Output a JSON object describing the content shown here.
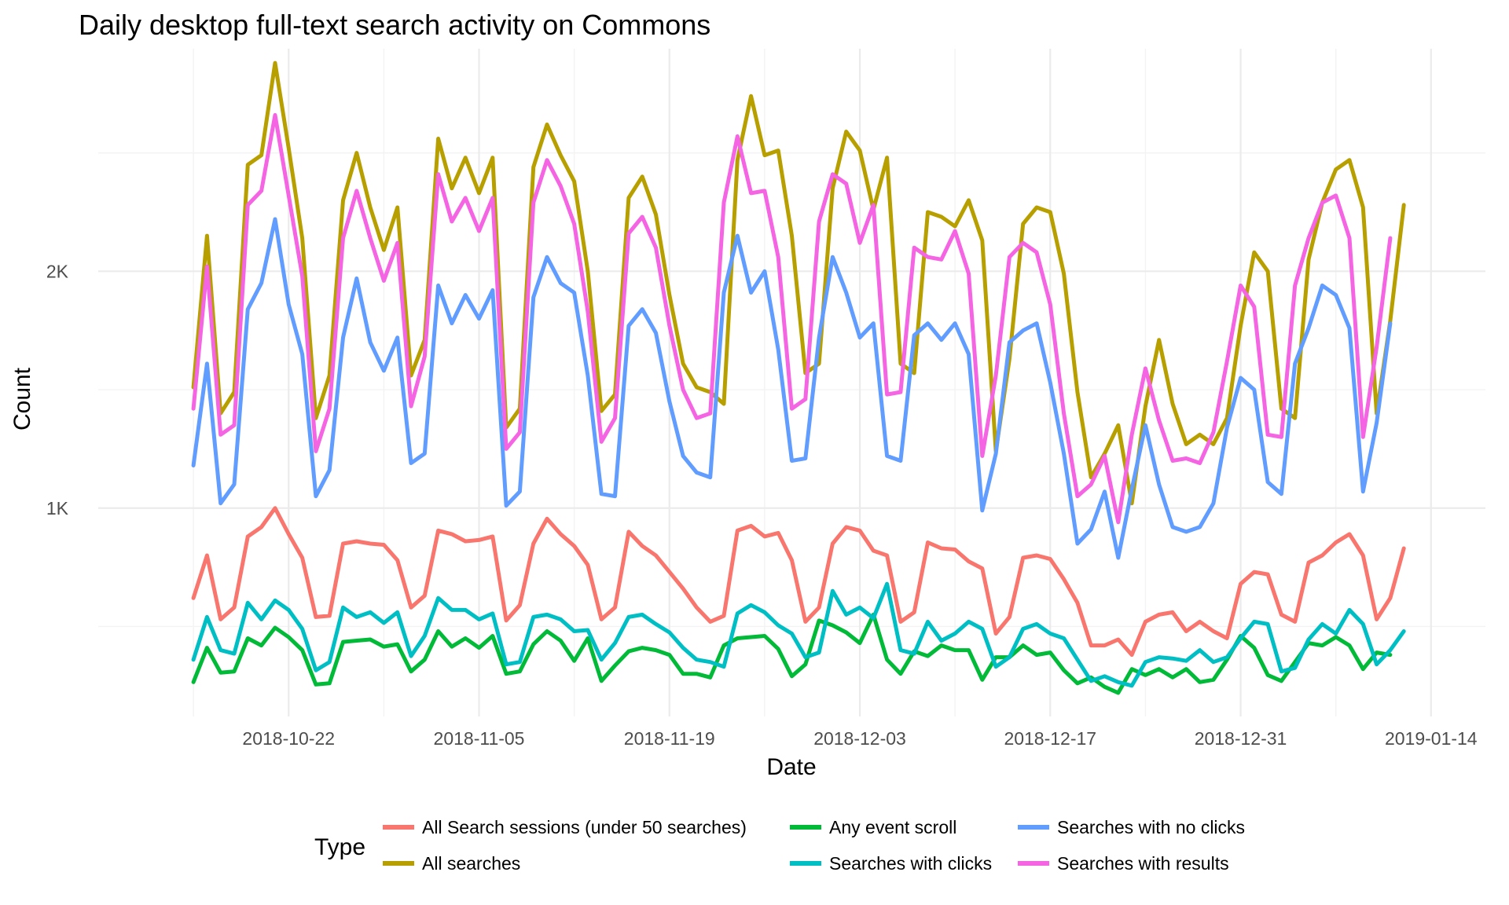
{
  "chart_data": {
    "type": "line",
    "title": "Daily desktop full-text search activity on Commons",
    "xlabel": "Date",
    "ylabel": "Count",
    "x_start": "2018-10-15",
    "x_tick_labels": [
      "2018-10-22",
      "2018-11-05",
      "2018-11-19",
      "2018-12-03",
      "2018-12-17",
      "2018-12-31",
      "2019-01-14"
    ],
    "x_ticks": [
      "2018-10-22",
      "2018-11-05",
      "2018-11-19",
      "2018-12-03",
      "2018-12-17",
      "2018-12-31",
      "2019-01-14"
    ],
    "xlim": [
      "2018-10-08",
      "2019-01-18"
    ],
    "y_ticks": [
      1000,
      2000
    ],
    "y_tick_labels": [
      "1K",
      "2K"
    ],
    "ylim": [
      120,
      2940
    ],
    "grid": true,
    "legend": {
      "title": "Type",
      "position": "bottom",
      "columns": [
        [
          "All Search sessions (under 50 searches)",
          "All searches"
        ],
        [
          "Any event scroll",
          "Searches with clicks"
        ],
        [
          "Searches with no clicks",
          "Searches with results"
        ]
      ]
    },
    "series": [
      {
        "name": "All Search sessions (under 50 searches)",
        "color": "#F8766D",
        "values": [
          620,
          800,
          530,
          580,
          880,
          920,
          1000,
          890,
          790,
          540,
          545,
          850,
          860,
          850,
          845,
          780,
          580,
          630,
          905,
          890,
          860,
          865,
          880,
          525,
          590,
          850,
          955,
          890,
          840,
          760,
          530,
          580,
          900,
          840,
          800,
          730,
          660,
          580,
          520,
          545,
          905,
          925,
          880,
          895,
          780,
          520,
          580,
          850,
          920,
          905,
          820,
          800,
          520,
          560,
          855,
          830,
          825,
          775,
          745,
          470,
          540,
          790,
          800,
          785,
          700,
          600,
          420,
          420,
          445,
          380,
          520,
          550,
          560,
          480,
          520,
          480,
          450,
          680,
          730,
          720,
          550,
          520,
          770,
          800,
          855,
          890,
          800,
          530,
          620,
          830
        ]
      },
      {
        "name": "All searches",
        "color": "#B79F00",
        "values": [
          1510,
          2150,
          1400,
          1490,
          2450,
          2490,
          2880,
          2520,
          2140,
          1380,
          1560,
          2300,
          2500,
          2270,
          2090,
          2270,
          1560,
          1710,
          2560,
          2350,
          2480,
          2330,
          2480,
          1340,
          1420,
          2440,
          2620,
          2490,
          2380,
          2000,
          1410,
          1480,
          2310,
          2400,
          2240,
          1900,
          1610,
          1510,
          1490,
          1440,
          2470,
          2740,
          2490,
          2510,
          2150,
          1570,
          1610,
          2350,
          2590,
          2510,
          2260,
          2480,
          1610,
          1570,
          2250,
          2230,
          2190,
          2300,
          2130,
          1240,
          1630,
          2200,
          2270,
          2250,
          1990,
          1490,
          1130,
          1230,
          1350,
          1020,
          1430,
          1710,
          1440,
          1270,
          1310,
          1270,
          1380,
          1770,
          2080,
          2000,
          1420,
          1380,
          2050,
          2290,
          2430,
          2470,
          2270,
          1400,
          1790,
          2280
        ]
      },
      {
        "name": "Any event scroll",
        "color": "#00BA38",
        "values": [
          265,
          410,
          305,
          310,
          450,
          420,
          495,
          455,
          400,
          255,
          260,
          435,
          440,
          445,
          415,
          425,
          310,
          360,
          480,
          415,
          450,
          410,
          460,
          300,
          310,
          425,
          480,
          440,
          355,
          450,
          270,
          335,
          395,
          410,
          400,
          380,
          300,
          300,
          285,
          420,
          450,
          455,
          460,
          405,
          290,
          340,
          525,
          505,
          475,
          430,
          550,
          360,
          300,
          395,
          375,
          420,
          400,
          400,
          275,
          370,
          370,
          420,
          380,
          390,
          315,
          260,
          285,
          245,
          220,
          320,
          295,
          320,
          285,
          320,
          265,
          275,
          360,
          460,
          410,
          295,
          270,
          350,
          430,
          420,
          455,
          420,
          320,
          390,
          380
        ]
      },
      {
        "name": "Searches with clicks",
        "color": "#00BFC4",
        "values": [
          360,
          540,
          400,
          385,
          600,
          530,
          610,
          570,
          490,
          315,
          350,
          580,
          540,
          560,
          515,
          560,
          375,
          460,
          620,
          570,
          570,
          530,
          555,
          340,
          350,
          540,
          550,
          530,
          480,
          485,
          360,
          430,
          540,
          550,
          510,
          475,
          410,
          360,
          350,
          330,
          555,
          590,
          560,
          505,
          470,
          370,
          390,
          650,
          550,
          580,
          535,
          680,
          400,
          385,
          520,
          440,
          470,
          520,
          490,
          330,
          370,
          490,
          510,
          470,
          450,
          360,
          270,
          290,
          265,
          250,
          350,
          370,
          365,
          355,
          400,
          350,
          370,
          450,
          520,
          510,
          310,
          325,
          445,
          510,
          470,
          570,
          510,
          340,
          400,
          480
        ]
      },
      {
        "name": "Searches with no clicks",
        "color": "#619CFF",
        "values": [
          1180,
          1610,
          1020,
          1100,
          1840,
          1950,
          2220,
          1860,
          1650,
          1050,
          1160,
          1720,
          1970,
          1700,
          1580,
          1720,
          1190,
          1230,
          1940,
          1780,
          1900,
          1800,
          1920,
          1010,
          1070,
          1890,
          2060,
          1950,
          1910,
          1560,
          1060,
          1050,
          1770,
          1840,
          1740,
          1450,
          1220,
          1150,
          1130,
          1910,
          2150,
          1910,
          2000,
          1670,
          1200,
          1210,
          1720,
          2060,
          1910,
          1720,
          1780,
          1220,
          1200,
          1730,
          1780,
          1710,
          1780,
          1650,
          990,
          1230,
          1700,
          1750,
          1780,
          1530,
          1230,
          850,
          910,
          1070,
          790,
          1080,
          1350,
          1100,
          920,
          900,
          920,
          1020,
          1340,
          1550,
          1500,
          1110,
          1060,
          1610,
          1760,
          1940,
          1900,
          1760,
          1070,
          1360,
          1780
        ]
      },
      {
        "name": "Searches with results",
        "color": "#F564E3",
        "values": [
          1420,
          2020,
          1310,
          1350,
          2280,
          2340,
          2660,
          2320,
          1980,
          1240,
          1420,
          2140,
          2340,
          2140,
          1960,
          2120,
          1430,
          1640,
          2410,
          2210,
          2310,
          2170,
          2310,
          1250,
          1320,
          2290,
          2470,
          2360,
          2200,
          1830,
          1280,
          1380,
          2160,
          2230,
          2100,
          1770,
          1500,
          1380,
          1400,
          2290,
          2570,
          2330,
          2340,
          2060,
          1420,
          1460,
          2210,
          2410,
          2370,
          2120,
          2280,
          1480,
          1490,
          2100,
          2060,
          2050,
          2170,
          1990,
          1220,
          1560,
          2060,
          2120,
          2080,
          1860,
          1400,
          1050,
          1100,
          1220,
          940,
          1310,
          1590,
          1370,
          1200,
          1210,
          1190,
          1320,
          1620,
          1940,
          1850,
          1310,
          1300,
          1940,
          2140,
          2290,
          2320,
          2140,
          1300,
          1680,
          2140
        ]
      }
    ]
  }
}
